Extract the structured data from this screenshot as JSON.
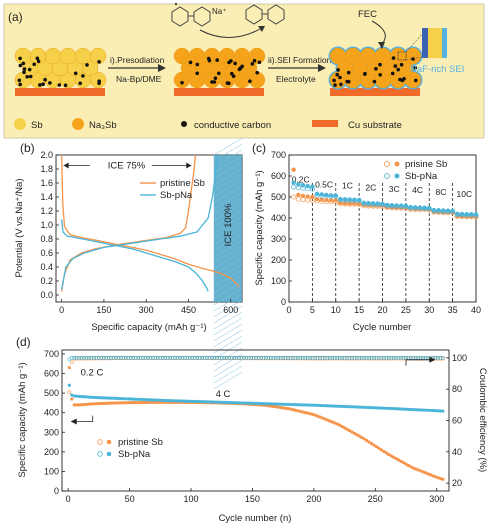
{
  "panel_labels": {
    "a": "(a)",
    "b": "(b)",
    "c": "(c)",
    "d": "(d)"
  },
  "panel_a": {
    "step1": "i).Presodiation",
    "step1_sub": "Na-Bp/DME",
    "step2": "ii).SEI Formation",
    "step2_sub": "Electrolyte",
    "na_label": "Na⁺",
    "fec": "FEC",
    "sei": "NaF-rich SEI",
    "legend": [
      "Sb",
      "Na₃Sb",
      "conductive carbon",
      "Cu substrate"
    ],
    "colors": {
      "band": "#fbeeb5",
      "sb": "#f5d048",
      "na3sb": "#f5a31b",
      "carbon": "#111111",
      "cu": "#f06a2a",
      "sei": "#56b2e0"
    }
  },
  "chart_data": [
    {
      "panel": "b",
      "type": "line",
      "xlabel": "Specific capacity (mAh g⁻¹)",
      "ylabel": "Potential (V vs.Na⁺/Na)",
      "xlim": [
        -20,
        640
      ],
      "ylim": [
        -0.1,
        2.0
      ],
      "xticks": [
        0,
        150,
        300,
        450,
        600
      ],
      "yticks": [
        0.0,
        0.2,
        0.4,
        0.6,
        0.8,
        1.0,
        1.2,
        1.4,
        1.6,
        1.8,
        2.0
      ],
      "annotation_ice75": "ICE 75%",
      "annotation_ice100": "ICE 100%",
      "shade_x": [
        540,
        640
      ],
      "legend": "top-right",
      "series": [
        {
          "name": "pristine Sb",
          "color": "#f5944a",
          "segments": [
            [
              [
                0,
                2.0
              ],
              [
                4,
                1.3
              ],
              [
                10,
                0.98
              ],
              [
                30,
                0.86
              ],
              [
                60,
                0.83
              ],
              [
                100,
                0.8
              ],
              [
                150,
                0.76
              ],
              [
                200,
                0.72
              ],
              [
                250,
                0.68
              ],
              [
                300,
                0.64
              ],
              [
                350,
                0.58
              ],
              [
                400,
                0.52
              ],
              [
                450,
                0.44
              ],
              [
                500,
                0.38
              ],
              [
                540,
                0.34
              ],
              [
                570,
                0.3
              ],
              [
                600,
                0.24
              ],
              [
                630,
                0.12
              ]
            ],
            [
              [
                0,
                0.05
              ],
              [
                10,
                0.3
              ],
              [
                30,
                0.5
              ],
              [
                70,
                0.6
              ],
              [
                120,
                0.66
              ],
              [
                200,
                0.72
              ],
              [
                300,
                0.78
              ],
              [
                370,
                0.82
              ],
              [
                420,
                0.88
              ],
              [
                440,
                0.96
              ],
              [
                450,
                1.2
              ],
              [
                460,
                1.5
              ],
              [
                470,
                1.8
              ],
              [
                475,
                2.0
              ]
            ]
          ]
        },
        {
          "name": "Sb-pNa",
          "color": "#4ab5d8",
          "segments": [
            [
              [
                0,
                1.08
              ],
              [
                5,
                0.9
              ],
              [
                20,
                0.84
              ],
              [
                50,
                0.82
              ],
              [
                100,
                0.78
              ],
              [
                150,
                0.74
              ],
              [
                200,
                0.7
              ],
              [
                250,
                0.66
              ],
              [
                300,
                0.6
              ],
              [
                350,
                0.54
              ],
              [
                400,
                0.48
              ],
              [
                450,
                0.4
              ],
              [
                480,
                0.3
              ],
              [
                500,
                0.2
              ],
              [
                515,
                0.1
              ],
              [
                520,
                0.05
              ]
            ],
            [
              [
                0,
                0.08
              ],
              [
                15,
                0.4
              ],
              [
                40,
                0.52
              ],
              [
                80,
                0.6
              ],
              [
                150,
                0.68
              ],
              [
                250,
                0.74
              ],
              [
                350,
                0.8
              ],
              [
                420,
                0.84
              ],
              [
                480,
                0.9
              ],
              [
                520,
                1.1
              ],
              [
                535,
                1.4
              ],
              [
                545,
                1.7
              ],
              [
                555,
                2.0
              ]
            ]
          ]
        }
      ]
    },
    {
      "panel": "c",
      "type": "scatter",
      "xlabel": "Cycle number",
      "ylabel": "Specific capacity (mAh g⁻¹)",
      "xlim": [
        0,
        40
      ],
      "ylim": [
        0,
        700
      ],
      "xticks": [
        0,
        5,
        10,
        15,
        20,
        25,
        30,
        35,
        40
      ],
      "yticks": [
        0,
        100,
        200,
        300,
        400,
        500,
        600,
        700
      ],
      "rate_labels": [
        {
          "x": 2.5,
          "text": "0.2C"
        },
        {
          "x": 7.5,
          "text": "0.5C"
        },
        {
          "x": 12.5,
          "text": "1C"
        },
        {
          "x": 17.5,
          "text": "2C"
        },
        {
          "x": 22.5,
          "text": "3C"
        },
        {
          "x": 27.5,
          "text": "4C"
        },
        {
          "x": 32.5,
          "text": "8C"
        },
        {
          "x": 37.5,
          "text": "10C"
        }
      ],
      "dividers": [
        5,
        10,
        15,
        20,
        25,
        30,
        35
      ],
      "legend": "top-right",
      "series": [
        {
          "name": "prisine Sb",
          "color": "#f5944a",
          "charge": [
            630,
            510,
            505,
            502,
            500,
            490,
            488,
            486,
            485,
            484,
            472,
            471,
            470,
            470,
            469,
            462,
            461,
            460,
            460,
            459,
            452,
            451,
            450,
            450,
            449,
            445,
            444,
            443,
            443,
            442,
            430,
            429,
            428,
            428,
            427,
            410,
            409,
            408,
            408,
            407
          ],
          "discharge": [
            500,
            490,
            488,
            486,
            485,
            482,
            480,
            478,
            477,
            476,
            468,
            467,
            466,
            466,
            465,
            458,
            457,
            456,
            456,
            455,
            450,
            449,
            448,
            448,
            447,
            442,
            441,
            440,
            440,
            439,
            428,
            427,
            426,
            426,
            425,
            408,
            407,
            406,
            406,
            405
          ]
        },
        {
          "name": "Sb-pNa",
          "color": "#4ab5d8",
          "charge": [
            568,
            560,
            556,
            552,
            549,
            515,
            512,
            510,
            508,
            507,
            490,
            489,
            488,
            487,
            486,
            472,
            471,
            470,
            469,
            468,
            462,
            461,
            460,
            459,
            458,
            452,
            451,
            450,
            449,
            448,
            438,
            437,
            436,
            435,
            434,
            420,
            419,
            418,
            418,
            417
          ],
          "discharge": [
            548,
            545,
            542,
            540,
            538,
            508,
            506,
            505,
            504,
            503,
            486,
            485,
            484,
            483,
            482,
            468,
            467,
            466,
            465,
            464,
            458,
            457,
            456,
            455,
            454,
            448,
            447,
            446,
            445,
            444,
            434,
            433,
            432,
            431,
            430,
            416,
            415,
            414,
            414,
            413
          ]
        }
      ]
    },
    {
      "panel": "d",
      "type": "scatter",
      "xlabel": "Cycle number (n)",
      "ylabel": "Specific capacity (mAh g⁻¹)",
      "ylabel_right": "Coulombic efficiency (%)",
      "xlim": [
        -5,
        310
      ],
      "ylim": [
        0,
        720
      ],
      "ylim_right": [
        15,
        105
      ],
      "xticks": [
        0,
        50,
        100,
        150,
        200,
        250,
        300
      ],
      "yticks": [
        0,
        100,
        200,
        300,
        400,
        500,
        600,
        700
      ],
      "yticks_right": [
        20,
        40,
        60,
        80,
        100
      ],
      "annotations": [
        {
          "x": 2,
          "y": 590,
          "text": "0.2 C"
        },
        {
          "x": 120,
          "y": 480,
          "text": "4 C"
        }
      ],
      "legend": "bottom-left",
      "series": [
        {
          "name": "pristine Sb",
          "color": "#f5944a",
          "capacity": [
            [
              1,
              630
            ],
            [
              2,
              590
            ],
            [
              3,
              470
            ],
            [
              5,
              440
            ],
            [
              10,
              440
            ],
            [
              20,
              445
            ],
            [
              40,
              450
            ],
            [
              60,
              452
            ],
            [
              80,
              453
            ],
            [
              100,
              452
            ],
            [
              120,
              450
            ],
            [
              140,
              446
            ],
            [
              160,
              438
            ],
            [
              180,
              420
            ],
            [
              200,
              390
            ],
            [
              220,
              340
            ],
            [
              240,
              270
            ],
            [
              260,
              190
            ],
            [
              280,
              120
            ],
            [
              300,
              70
            ],
            [
              305,
              60
            ]
          ],
          "ce": [
            [
              1,
              78
            ],
            [
              2,
              92
            ],
            [
              3,
              97
            ],
            [
              5,
              99.5
            ],
            [
              50,
              99.8
            ],
            [
              100,
              99.8
            ],
            [
              150,
              99.7
            ],
            [
              200,
              99.6
            ],
            [
              250,
              99.6
            ],
            [
              300,
              99.5
            ]
          ]
        },
        {
          "name": "Sb-pNa",
          "color": "#4ab5d8",
          "capacity": [
            [
              1,
              540
            ],
            [
              2,
              520
            ],
            [
              3,
              490
            ],
            [
              5,
              485
            ],
            [
              20,
              478
            ],
            [
              50,
              470
            ],
            [
              80,
              462
            ],
            [
              100,
              458
            ],
            [
              150,
              448
            ],
            [
              200,
              438
            ],
            [
              250,
              425
            ],
            [
              300,
              410
            ],
            [
              305,
              408
            ]
          ],
          "ce": [
            [
              1,
              99
            ],
            [
              3,
              100
            ],
            [
              10,
              100
            ],
            [
              50,
              100
            ],
            [
              100,
              100
            ],
            [
              150,
              100
            ],
            [
              200,
              100
            ],
            [
              250,
              100
            ],
            [
              300,
              100
            ]
          ]
        }
      ]
    }
  ]
}
